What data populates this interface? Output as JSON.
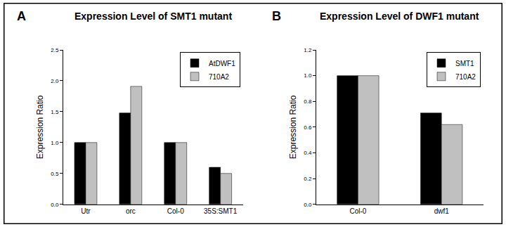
{
  "chart_data": [
    {
      "type": "bar",
      "annotations": [
        "A"
      ],
      "title": "Expression Level of SMT1 mutant",
      "y_label": "Expression Ratio",
      "categories": [
        "Utr",
        "orc",
        "Col-0",
        "35S:SMT1"
      ],
      "series": [
        {
          "name": "AtDWF1",
          "color": "#000000",
          "values": [
            1.0,
            1.48,
            1.0,
            0.6
          ]
        },
        {
          "name": "710A2",
          "color": "#c0c0c0",
          "values": [
            1.0,
            1.91,
            1.0,
            0.5
          ]
        }
      ],
      "ylim": [
        0,
        2.5
      ],
      "yticks": [
        {
          "value": 0,
          "label": "0.0"
        },
        {
          "value": 0.5,
          "label": "0.5"
        },
        {
          "value": 1,
          "label": "1.0"
        },
        {
          "value": 1.5,
          "label": "1.5"
        },
        {
          "value": 2,
          "label": "2.0"
        },
        {
          "value": 2.5,
          "label": "2.5"
        }
      ],
      "grid": false,
      "legend": "upper right"
    },
    {
      "type": "bar",
      "annotations": [
        "B"
      ],
      "title": "Expression Level of DWF1 mutant",
      "y_label": "Expression Ratio",
      "categories": [
        "Col-0",
        "dwf1"
      ],
      "series": [
        {
          "name": "SMT1",
          "color": "#000000",
          "values": [
            1.0,
            0.71
          ]
        },
        {
          "name": "710A2",
          "color": "#c0c0c0",
          "values": [
            1.0,
            0.62
          ]
        }
      ],
      "ylim": [
        0,
        1.2
      ],
      "yticks": [
        {
          "value": 0,
          "label": "0.0"
        },
        {
          "value": 0.2,
          "label": "0.2"
        },
        {
          "value": 0.4,
          "label": "0.4"
        },
        {
          "value": 0.6,
          "label": "0.6"
        },
        {
          "value": 0.8,
          "label": "0.8"
        },
        {
          "value": 1,
          "label": "1.0"
        },
        {
          "value": 1.2,
          "label": "1.2"
        }
      ],
      "grid": false,
      "legend": "upper right"
    }
  ]
}
